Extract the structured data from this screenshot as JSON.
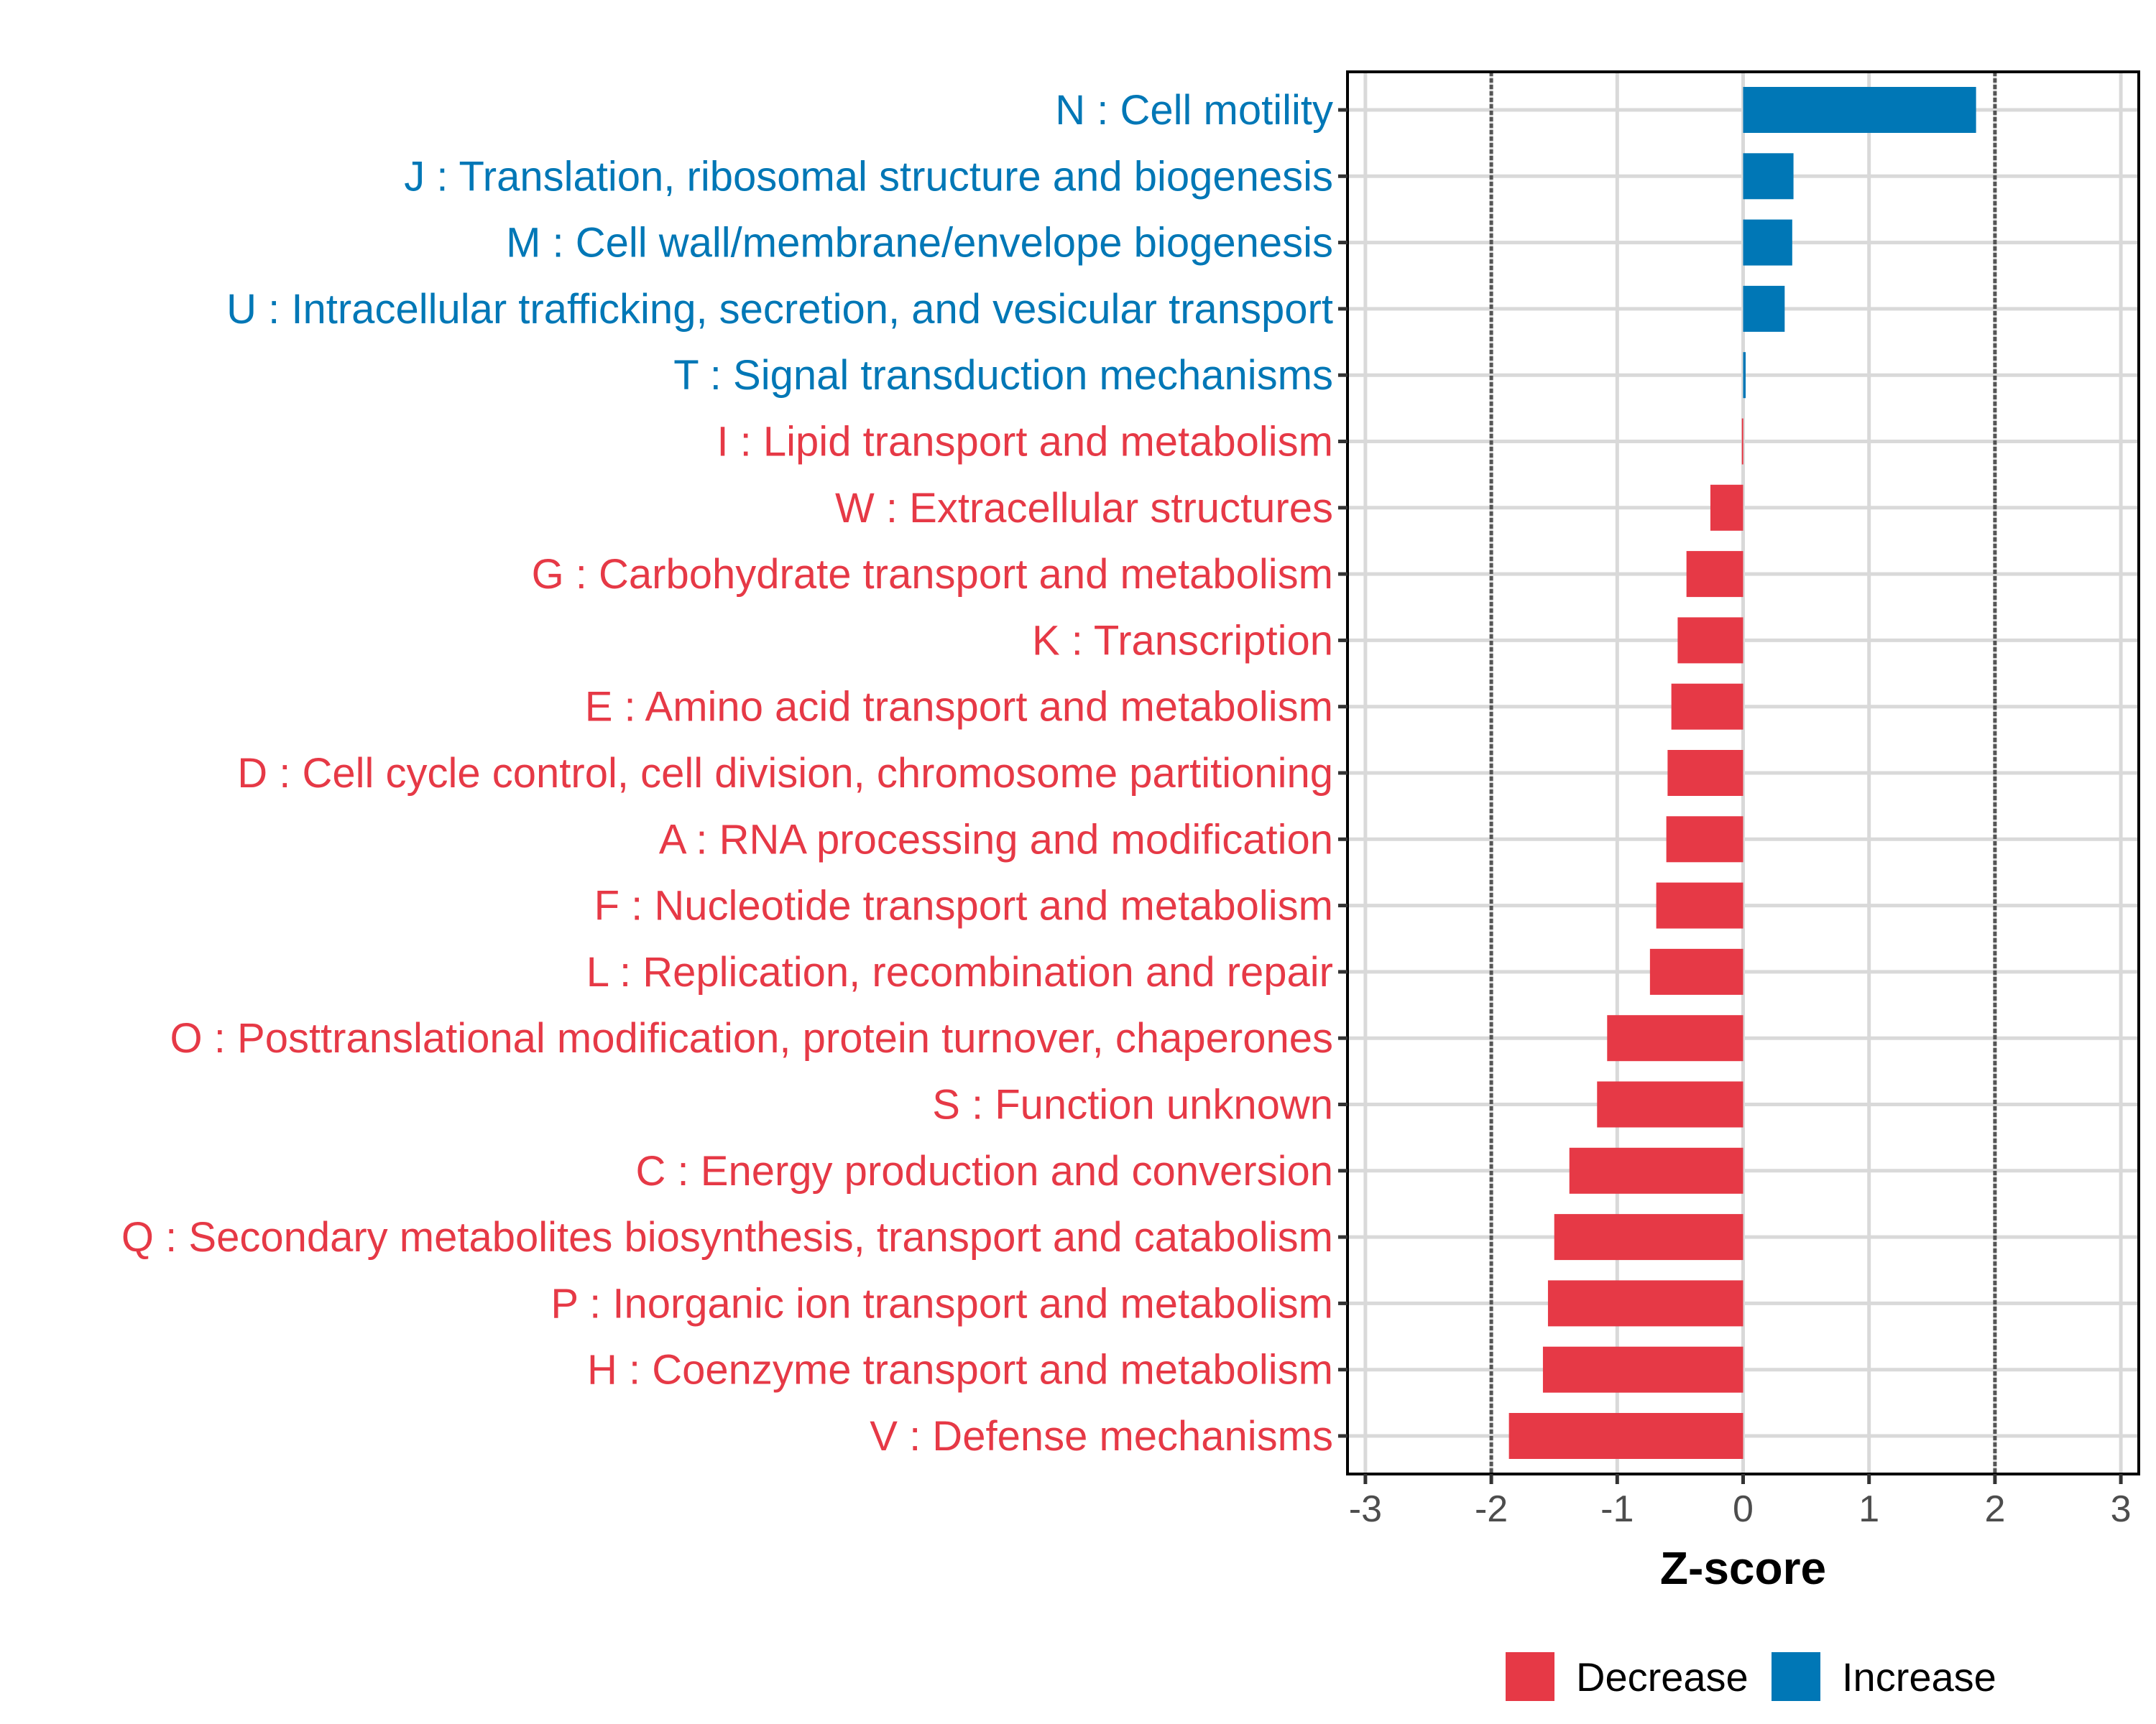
{
  "chart_data": {
    "type": "bar",
    "orientation": "horizontal",
    "title": "",
    "xlabel": "Z-score",
    "ylabel": "",
    "xlim": [
      -3.1,
      3.1
    ],
    "xticks": [
      -3,
      -2,
      -1,
      0,
      1,
      2,
      3
    ],
    "xtick_labels": [
      "-3",
      "-2",
      "-1",
      "0",
      "1",
      "2",
      "3"
    ],
    "reference_lines": [
      -2,
      2
    ],
    "reference_line_style": "dotted",
    "grid": true,
    "legend_position": "bottom",
    "colors": {
      "Decrease": "#E63946",
      "Increase": "#0077B6"
    },
    "legend": [
      {
        "label": "Decrease",
        "color": "#E63946"
      },
      {
        "label": "Increase",
        "color": "#0077B6"
      }
    ],
    "categories": [
      "N : Cell motility",
      "J : Translation, ribosomal structure and biogenesis",
      "M : Cell wall/membrane/envelope biogenesis",
      "U : Intracellular trafficking, secretion, and vesicular transport",
      "T : Signal transduction mechanisms",
      "I : Lipid transport and metabolism",
      "W : Extracellular structures",
      "G : Carbohydrate transport and metabolism",
      "K : Transcription",
      "E : Amino acid transport and metabolism",
      "D : Cell cycle control, cell division, chromosome partitioning",
      "A : RNA processing and modification",
      "F : Nucleotide transport and metabolism",
      "L : Replication, recombination and repair",
      "O : Posttranslational modification, protein turnover, chaperones",
      "S : Function unknown",
      "C : Energy production and conversion",
      "Q : Secondary metabolites biosynthesis, transport and catabolism",
      "P : Inorganic ion transport and metabolism",
      "H : Coenzyme transport and metabolism",
      "V : Defense mechanisms"
    ],
    "values": [
      1.85,
      0.4,
      0.39,
      0.33,
      0.02,
      -0.01,
      -0.26,
      -0.45,
      -0.52,
      -0.57,
      -0.6,
      -0.61,
      -0.69,
      -0.74,
      -1.08,
      -1.16,
      -1.38,
      -1.5,
      -1.55,
      -1.59,
      -1.86
    ],
    "groups": [
      "Increase",
      "Increase",
      "Increase",
      "Increase",
      "Increase",
      "Decrease",
      "Decrease",
      "Decrease",
      "Decrease",
      "Decrease",
      "Decrease",
      "Decrease",
      "Decrease",
      "Decrease",
      "Decrease",
      "Decrease",
      "Decrease",
      "Decrease",
      "Decrease",
      "Decrease",
      "Decrease"
    ]
  }
}
